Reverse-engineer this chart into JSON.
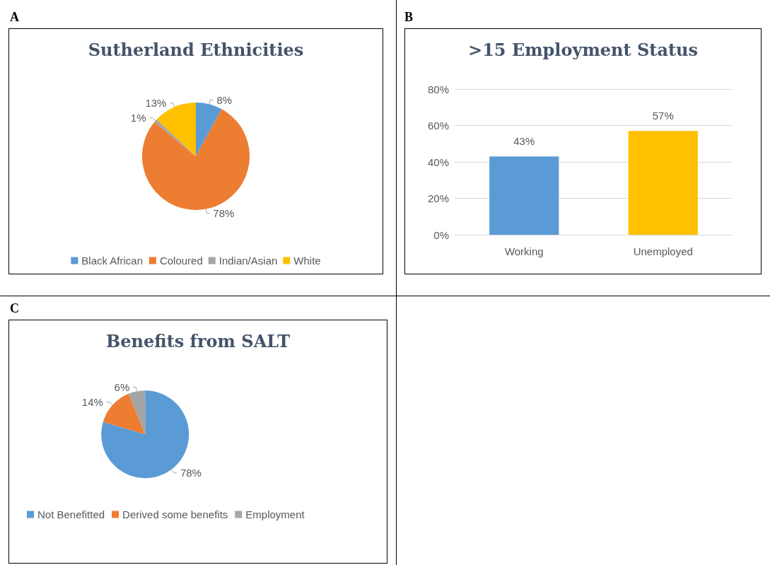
{
  "chart_data": [
    {
      "type": "pie",
      "title": "Sutherland Ethnicities",
      "annotations": [
        "A"
      ],
      "categories": [
        "Black African",
        "Coloured",
        "Indian/Asian",
        "White"
      ],
      "values": [
        8,
        78,
        1,
        13
      ],
      "colors": [
        "#5b9bd5",
        "#ed7d31",
        "#a5a5a5",
        "#ffc000"
      ],
      "value_labels": [
        "8%",
        "78%",
        "1%",
        "13%"
      ],
      "legend": "bottom"
    },
    {
      "type": "bar",
      "title": ">15 Employment Status",
      "annotations": [
        "B"
      ],
      "categories": [
        "Working",
        "Unemployed"
      ],
      "values": [
        43,
        57
      ],
      "colors": [
        "#5b9bd5",
        "#ffc000"
      ],
      "value_labels": [
        "43%",
        "57%"
      ],
      "ylim": [
        0,
        80
      ],
      "yticks": [
        {
          "value": 0,
          "label": "0%"
        },
        {
          "value": 20,
          "label": "20%"
        },
        {
          "value": 40,
          "label": "40%"
        },
        {
          "value": 60,
          "label": "60%"
        },
        {
          "value": 80,
          "label": "80%"
        }
      ],
      "grid": "y"
    },
    {
      "type": "pie",
      "title": "Benefits from SALT",
      "annotations": [
        "C"
      ],
      "categories": [
        "Not Benefitted",
        "Derived some benefits",
        "Employment"
      ],
      "values": [
        78,
        14,
        6
      ],
      "colors": [
        "#5b9bd5",
        "#ed7d31",
        "#a5a5a5"
      ],
      "value_labels": [
        "78%",
        "14%",
        "6%"
      ],
      "legend": "bottom"
    }
  ]
}
